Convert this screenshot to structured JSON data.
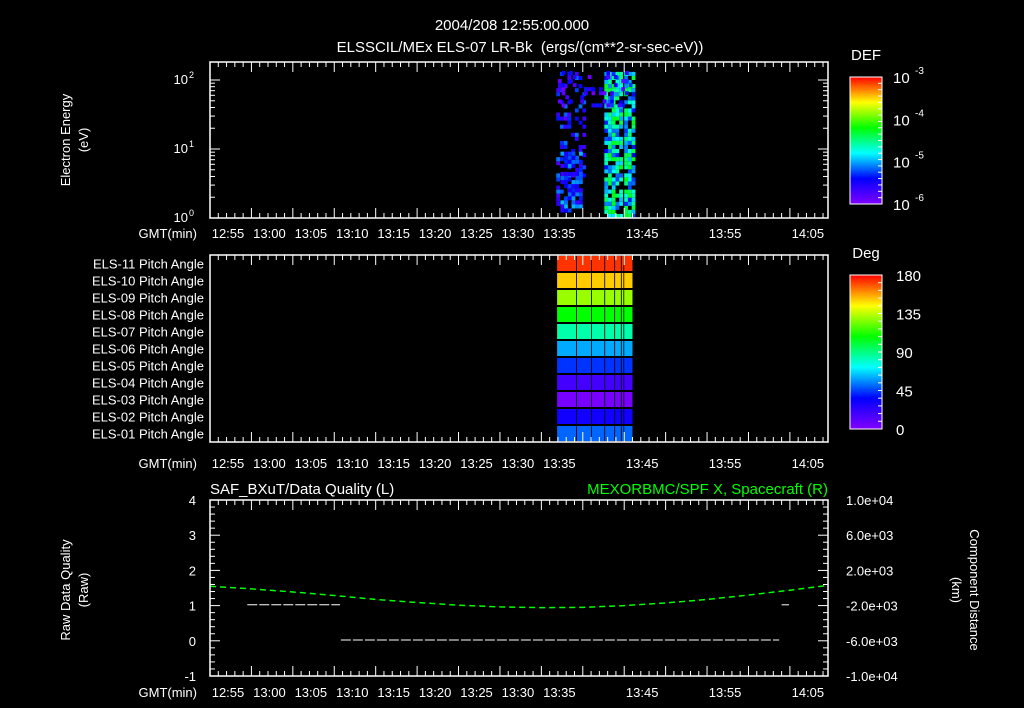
{
  "header": {
    "datetime": "2004/208 12:55:00.000",
    "subtitle": "ELSSCIL/MEx ELS-07 LR-Bk  (ergs/(cm**2-sr-sec-eV))"
  },
  "time_axis": {
    "label": "GMT(min)",
    "start": "12:55",
    "span_min": 74.6,
    "ticks": [
      {
        "label": "12:55",
        "offset_min": 0
      },
      {
        "label": "13:00",
        "offset_min": 5
      },
      {
        "label": "13:05",
        "offset_min": 10
      },
      {
        "label": "13:10",
        "offset_min": 15
      },
      {
        "label": "13:15",
        "offset_min": 20
      },
      {
        "label": "13:20",
        "offset_min": 25
      },
      {
        "label": "13:25",
        "offset_min": 30
      },
      {
        "label": "13:30",
        "offset_min": 35
      },
      {
        "label": "13:35",
        "offset_min": 40
      },
      {
        "label": "13:45",
        "offset_min": 50
      },
      {
        "label": "13:55",
        "offset_min": 60
      },
      {
        "label": "14:05",
        "offset_min": 70
      }
    ]
  },
  "chart_data": [
    {
      "type": "heatmap",
      "title": "ELSSCIL/MEx ELS-07 LR-Bk  (ergs/(cm**2-sr-sec-eV))",
      "ylabel": "Electron Energy",
      "yunit": "(eV)",
      "yscale": "log",
      "ylim": [
        1,
        190
      ],
      "yticks": [
        {
          "label": "10",
          "exp": "0",
          "value": 1
        },
        {
          "label": "10",
          "exp": "1",
          "value": 10
        },
        {
          "label": "10",
          "exp": "2",
          "value": 100
        }
      ],
      "colorbar": {
        "title": "DEF",
        "range": [
          1e-06,
          0.001
        ],
        "ticks": [
          {
            "label": "10",
            "exp": "-3"
          },
          {
            "label": "10",
            "exp": "-4"
          },
          {
            "label": "10",
            "exp": "-5"
          },
          {
            "label": "10",
            "exp": "-6"
          }
        ]
      },
      "seed": 20040726,
      "regions": [
        {
          "t0": 41.8,
          "t1": 45.2,
          "emin": 1.5,
          "emax": 130,
          "density": 0.3,
          "level": [
            0.05,
            0.3
          ]
        },
        {
          "t0": 42.3,
          "t1": 45.0,
          "emin": 1.2,
          "emax": 9,
          "density": 0.75,
          "level": [
            0.1,
            0.35
          ]
        },
        {
          "t0": 47.6,
          "t1": 49.6,
          "emin": 1.0,
          "emax": 130,
          "density": 0.85,
          "level": [
            0.2,
            0.6
          ]
        },
        {
          "t0": 50.0,
          "t1": 51.0,
          "emin": 1.0,
          "emax": 130,
          "density": 0.85,
          "level": [
            0.2,
            0.6
          ]
        },
        {
          "t0": 42.0,
          "t1": 51.0,
          "emin": 40,
          "emax": 130,
          "density": 0.3,
          "level": [
            0.02,
            0.25
          ]
        }
      ]
    },
    {
      "type": "heatmap",
      "rows": [
        {
          "label": "ELS-11 Pitch Angle",
          "color": "#ff3300"
        },
        {
          "label": "ELS-10 Pitch Angle",
          "color": "#ffcc00"
        },
        {
          "label": "ELS-09 Pitch Angle",
          "color": "#99ff00"
        },
        {
          "label": "ELS-08 Pitch Angle",
          "color": "#00ff00"
        },
        {
          "label": "ELS-07 Pitch Angle",
          "color": "#00ffaa"
        },
        {
          "label": "ELS-06 Pitch Angle",
          "color": "#00aaff"
        },
        {
          "label": "ELS-05 Pitch Angle",
          "color": "#0033ff"
        },
        {
          "label": "ELS-04 Pitch Angle",
          "color": "#4400ff"
        },
        {
          "label": "ELS-03 Pitch Angle",
          "color": "#7700ff"
        },
        {
          "label": "ELS-02 Pitch Angle",
          "color": "#1100ff"
        },
        {
          "label": "ELS-01 Pitch Angle",
          "color": "#0066ff"
        }
      ],
      "columns": [
        [
          41.9,
          44.2
        ],
        [
          44.3,
          46.0
        ],
        [
          46.1,
          47.6
        ],
        [
          47.7,
          48.8
        ],
        [
          48.9,
          49.6
        ],
        [
          49.7,
          49.9
        ],
        [
          50.0,
          51.0
        ]
      ],
      "colorbar": {
        "title": "Deg",
        "range": [
          0,
          180
        ],
        "ticks": [
          "180",
          "135",
          "90",
          "45",
          "0"
        ]
      }
    },
    {
      "type": "line",
      "left_title": "SAF_BXuT/Data Quality (L)",
      "right_title": "MEXORBMC/SPF X, Spacecraft (R)",
      "ylabel_left": "Raw Data Quality",
      "ylabel_left_unit": "(Raw)",
      "ylabel_right": "Component Distance",
      "ylabel_right_unit": "(km)",
      "ylim_left": [
        -1,
        4
      ],
      "yticks_left": [
        "4",
        "3",
        "2",
        "1",
        "0",
        "-1"
      ],
      "ylim_right": [
        -10000,
        10000
      ],
      "yticks_right": [
        "1.0e+04",
        "6.0e+03",
        "2.0e+03",
        "-2.0e+03",
        "-6.0e+03",
        "-1.0e+04"
      ],
      "series": [
        {
          "name": "Data Quality",
          "axis": "left",
          "color": "#ffffff",
          "segments": [
            {
              "t0": 4.5,
              "t1": 15.7,
              "value": 1
            },
            {
              "t0": 15.8,
              "t1": 68.7,
              "value": 0
            },
            {
              "t0": 69.0,
              "t1": 69.9,
              "value": 1
            }
          ]
        },
        {
          "name": "MEXORBMC/SPF X",
          "axis": "right",
          "color": "#00ff00",
          "x": [
            0,
            5,
            10,
            15,
            20,
            25,
            30,
            35,
            40,
            45,
            50,
            55,
            60,
            65,
            70,
            74.6
          ],
          "values": [
            200,
            -100,
            -450,
            -850,
            -1300,
            -1650,
            -1950,
            -2150,
            -2230,
            -2200,
            -2000,
            -1700,
            -1300,
            -800,
            -250,
            300
          ]
        }
      ]
    }
  ]
}
